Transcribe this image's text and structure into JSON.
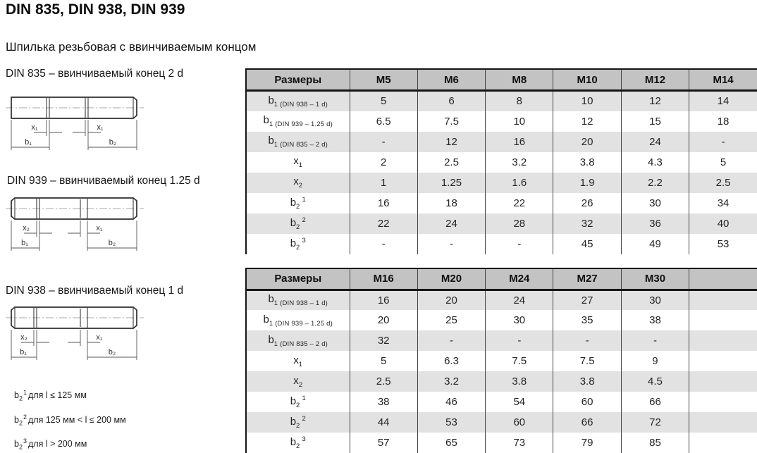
{
  "page": {
    "title": "DIN 835, DIN 938, DIN 939",
    "subtitle": "Шпилька резьбовая с ввинчиваемым концом"
  },
  "diagrams": [
    {
      "caption": "DIN 835 – ввинчиваемый конец 2 d",
      "x_left": "x₁",
      "x_right": "x₁",
      "b_left": "b₁",
      "b_right": "b₂"
    },
    {
      "caption": "DIN 939 – ввинчиваемый конец 1.25 d",
      "x_left": "x₂",
      "x_right": "x₁",
      "b_left": "b₁",
      "b_right": "b₂"
    },
    {
      "caption": "DIN 938 – ввинчиваемый конец 1 d",
      "x_left": "x₂",
      "x_right": "x₁",
      "b_left": "b₁",
      "b_right": "b₂"
    }
  ],
  "footnotes": [
    {
      "main": "b",
      "sub": "2",
      "sup": "1",
      "text": "для l ≤ 125 мм"
    },
    {
      "main": "b",
      "sub": "2",
      "sup": "2",
      "text": "для 125 мм < l ≤ 200 мм"
    },
    {
      "main": "b",
      "sub": "2",
      "sup": "3",
      "text": "для l > 200 мм"
    }
  ],
  "tables": [
    {
      "header": [
        "Размеры",
        "M5",
        "M6",
        "M8",
        "M10",
        "M12",
        "M14"
      ],
      "rows": [
        {
          "label_main": "b",
          "label_sub": "1 (DIN 938 – 1 d)",
          "label_sup": "",
          "values": [
            "5",
            "6",
            "8",
            "10",
            "12",
            "14"
          ]
        },
        {
          "label_main": "b",
          "label_sub": "1 (DIN 939 – 1.25 d)",
          "label_sup": "",
          "values": [
            "6.5",
            "7.5",
            "10",
            "12",
            "15",
            "18"
          ]
        },
        {
          "label_main": "b",
          "label_sub": "1 (DIN 835 – 2 d)",
          "label_sup": "",
          "values": [
            "-",
            "12",
            "16",
            "20",
            "24",
            "-"
          ]
        },
        {
          "label_main": "x",
          "label_sub": "1",
          "label_sup": "",
          "values": [
            "2",
            "2.5",
            "3.2",
            "3.8",
            "4.3",
            "5"
          ]
        },
        {
          "label_main": "x",
          "label_sub": "2",
          "label_sup": "",
          "values": [
            "1",
            "1.25",
            "1.6",
            "1.9",
            "2.2",
            "2.5"
          ]
        },
        {
          "label_main": "b",
          "label_sub": "2",
          "label_sup": "1",
          "values": [
            "16",
            "18",
            "22",
            "26",
            "30",
            "34"
          ]
        },
        {
          "label_main": "b",
          "label_sub": "2",
          "label_sup": "2",
          "values": [
            "22",
            "24",
            "28",
            "32",
            "36",
            "40"
          ]
        },
        {
          "label_main": "b",
          "label_sub": "2",
          "label_sup": "3",
          "values": [
            "-",
            "-",
            "-",
            "45",
            "49",
            "53"
          ]
        }
      ]
    },
    {
      "header": [
        "Размеры",
        "M16",
        "M20",
        "M24",
        "M27",
        "M30",
        ""
      ],
      "rows": [
        {
          "label_main": "b",
          "label_sub": "1 (DIN 938 – 1 d)",
          "label_sup": "",
          "values": [
            "16",
            "20",
            "24",
            "27",
            "30",
            ""
          ]
        },
        {
          "label_main": "b",
          "label_sub": "1 (DIN 939 – 1.25 d)",
          "label_sup": "",
          "values": [
            "20",
            "25",
            "30",
            "35",
            "38",
            ""
          ]
        },
        {
          "label_main": "b",
          "label_sub": "1 (DIN 835 – 2 d)",
          "label_sup": "",
          "values": [
            "32",
            "-",
            "-",
            "-",
            "-",
            ""
          ]
        },
        {
          "label_main": "x",
          "label_sub": "1",
          "label_sup": "",
          "values": [
            "5",
            "6.3",
            "7.5",
            "7.5",
            "9",
            ""
          ]
        },
        {
          "label_main": "x",
          "label_sub": "2",
          "label_sup": "",
          "values": [
            "2.5",
            "3.2",
            "3.8",
            "3.8",
            "4.5",
            ""
          ]
        },
        {
          "label_main": "b",
          "label_sub": "2",
          "label_sup": "1",
          "values": [
            "38",
            "46",
            "54",
            "60",
            "66",
            ""
          ]
        },
        {
          "label_main": "b",
          "label_sub": "2",
          "label_sup": "2",
          "values": [
            "44",
            "53",
            "60",
            "66",
            "72",
            ""
          ]
        },
        {
          "label_main": "b",
          "label_sub": "2",
          "label_sup": "3",
          "values": [
            "57",
            "65",
            "73",
            "79",
            "85",
            ""
          ]
        }
      ]
    }
  ]
}
